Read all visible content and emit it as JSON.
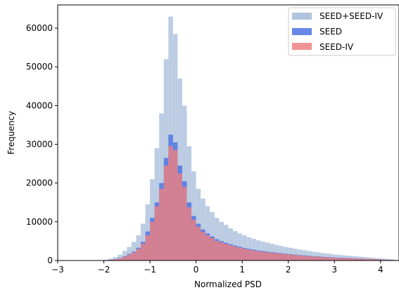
{
  "chart_data": {
    "type": "histogram",
    "title": "",
    "xlabel": "Normalized PSD",
    "ylabel": "Frequency",
    "xlim": [
      -3.0,
      4.4
    ],
    "ylim": [
      0,
      66000
    ],
    "xticks": [
      -3,
      -2,
      -1,
      0,
      1,
      2,
      3,
      4
    ],
    "xtick_labels": [
      "−3",
      "−2",
      "−1",
      "0",
      "1",
      "2",
      "3",
      "4"
    ],
    "yticks": [
      0,
      10000,
      20000,
      30000,
      40000,
      50000,
      60000
    ],
    "ytick_labels": [
      "0",
      "10000",
      "20000",
      "30000",
      "40000",
      "50000",
      "60000"
    ],
    "grid": false,
    "legend_position": "top-right",
    "bin_edges": [
      -2.0,
      -1.9,
      -1.8,
      -1.7,
      -1.6,
      -1.5,
      -1.4,
      -1.3,
      -1.2,
      -1.1,
      -1.0,
      -0.9,
      -0.8,
      -0.7,
      -0.6,
      -0.5,
      -0.4,
      -0.3,
      -0.2,
      -0.1,
      0.0,
      0.1,
      0.2,
      0.3,
      0.4,
      0.5,
      0.6,
      0.7,
      0.8,
      0.9,
      1.0,
      1.1,
      1.2,
      1.3,
      1.4,
      1.5,
      1.6,
      1.7,
      1.8,
      1.9,
      2.0,
      2.1,
      2.2,
      2.3,
      2.4,
      2.5,
      2.6,
      2.7,
      2.8,
      2.9,
      3.0,
      3.1,
      3.2,
      3.3,
      3.4,
      3.5,
      3.6,
      3.7,
      3.8,
      3.9,
      4.0,
      4.1,
      4.2,
      4.3,
      4.4
    ],
    "series": [
      {
        "name": "SEED+SEED-IV",
        "color": "#b0c4de",
        "opacity": 0.85,
        "values": [
          200,
          500,
          900,
          1500,
          2500,
          3500,
          4800,
          6500,
          9500,
          14500,
          21000,
          29000,
          38000,
          52000,
          63000,
          58500,
          47000,
          40000,
          29500,
          23000,
          18500,
          16000,
          14000,
          12500,
          11000,
          10000,
          9200,
          8300,
          7600,
          7000,
          6500,
          6000,
          5600,
          5200,
          4900,
          4600,
          4300,
          4000,
          3750,
          3500,
          3300,
          3050,
          2850,
          2650,
          2450,
          2250,
          2100,
          1950,
          1800,
          1650,
          1500,
          1400,
          1300,
          1200,
          1100,
          1000,
          900,
          800,
          700,
          600,
          500,
          400,
          300,
          150
        ]
      },
      {
        "name": "SEED",
        "color": "#4169e1",
        "opacity": 0.75,
        "values": [
          80,
          200,
          350,
          600,
          1100,
          1700,
          2300,
          3300,
          4800,
          7500,
          11000,
          15000,
          20000,
          26500,
          32500,
          30500,
          24500,
          20500,
          15000,
          11500,
          9500,
          8000,
          7000,
          6200,
          5500,
          5000,
          4600,
          4200,
          3850,
          3550,
          3250,
          3000,
          2800,
          2600,
          2450,
          2300,
          2150,
          2000,
          1880,
          1750,
          1650,
          1520,
          1420,
          1320,
          1220,
          1120,
          1050,
          980,
          900,
          830,
          750,
          700,
          650,
          600,
          550,
          500,
          450,
          400,
          350,
          300,
          250,
          200,
          150,
          80
        ]
      },
      {
        "name": "SEED-IV",
        "color": "#f08080",
        "opacity": 0.8,
        "values": [
          70,
          180,
          320,
          550,
          1000,
          1500,
          2100,
          3000,
          4300,
          6500,
          10000,
          14000,
          18500,
          24500,
          29500,
          28500,
          22500,
          19000,
          13700,
          10500,
          8700,
          7400,
          6500,
          5800,
          5100,
          4700,
          4300,
          3950,
          3600,
          3300,
          3050,
          2800,
          2600,
          2420,
          2280,
          2140,
          2000,
          1860,
          1750,
          1640,
          1540,
          1420,
          1320,
          1230,
          1140,
          1050,
          980,
          910,
          840,
          770,
          700,
          650,
          600,
          560,
          510,
          460,
          420,
          370,
          330,
          280,
          230,
          180,
          130,
          70
        ]
      }
    ]
  }
}
